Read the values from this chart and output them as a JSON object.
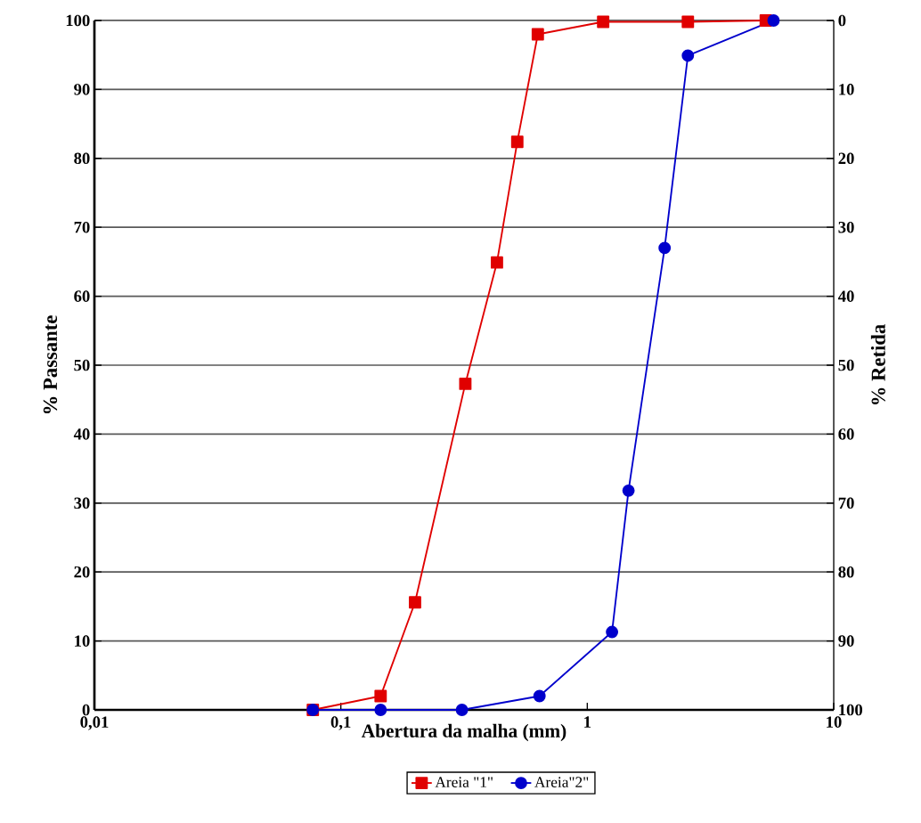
{
  "chart_data": {
    "type": "line",
    "xlabel": "Abertura da malha (mm)",
    "ylabel": "% Passante",
    "y2label": "% Retida",
    "log": "x",
    "grid": "y",
    "legend": "bottom",
    "xlim": [
      0.01,
      10
    ],
    "xticks": [
      {
        "value": 0.01,
        "label": "0,01"
      },
      {
        "value": 0.1,
        "label": "0,1"
      },
      1,
      10
    ],
    "ylim": [
      0,
      100
    ],
    "yticks": [
      0,
      10,
      20,
      30,
      40,
      50,
      60,
      70,
      80,
      90,
      100
    ],
    "y2lim": [
      100,
      0
    ],
    "y2ticks": [
      0,
      10,
      20,
      30,
      40,
      50,
      60,
      70,
      80,
      90,
      100
    ],
    "series": [
      {
        "name": "Areia \"1\"",
        "color": "#e00000",
        "marker": "square",
        "x": [
          0.077,
          0.145,
          0.2,
          0.32,
          0.43,
          0.52,
          0.63,
          1.16,
          2.56,
          5.3
        ],
        "values": [
          0,
          2,
          15.6,
          47.3,
          64.9,
          82.4,
          98,
          99.8,
          99.8,
          100
        ]
      },
      {
        "name": "Areia\"2\"",
        "color": "#0000cc",
        "marker": "circle",
        "x": [
          0.077,
          0.145,
          0.31,
          0.64,
          1.26,
          1.47,
          2.06,
          2.56,
          5.7
        ],
        "values": [
          0,
          0,
          0,
          2,
          11.3,
          31.8,
          67,
          94.9,
          100
        ]
      }
    ]
  }
}
